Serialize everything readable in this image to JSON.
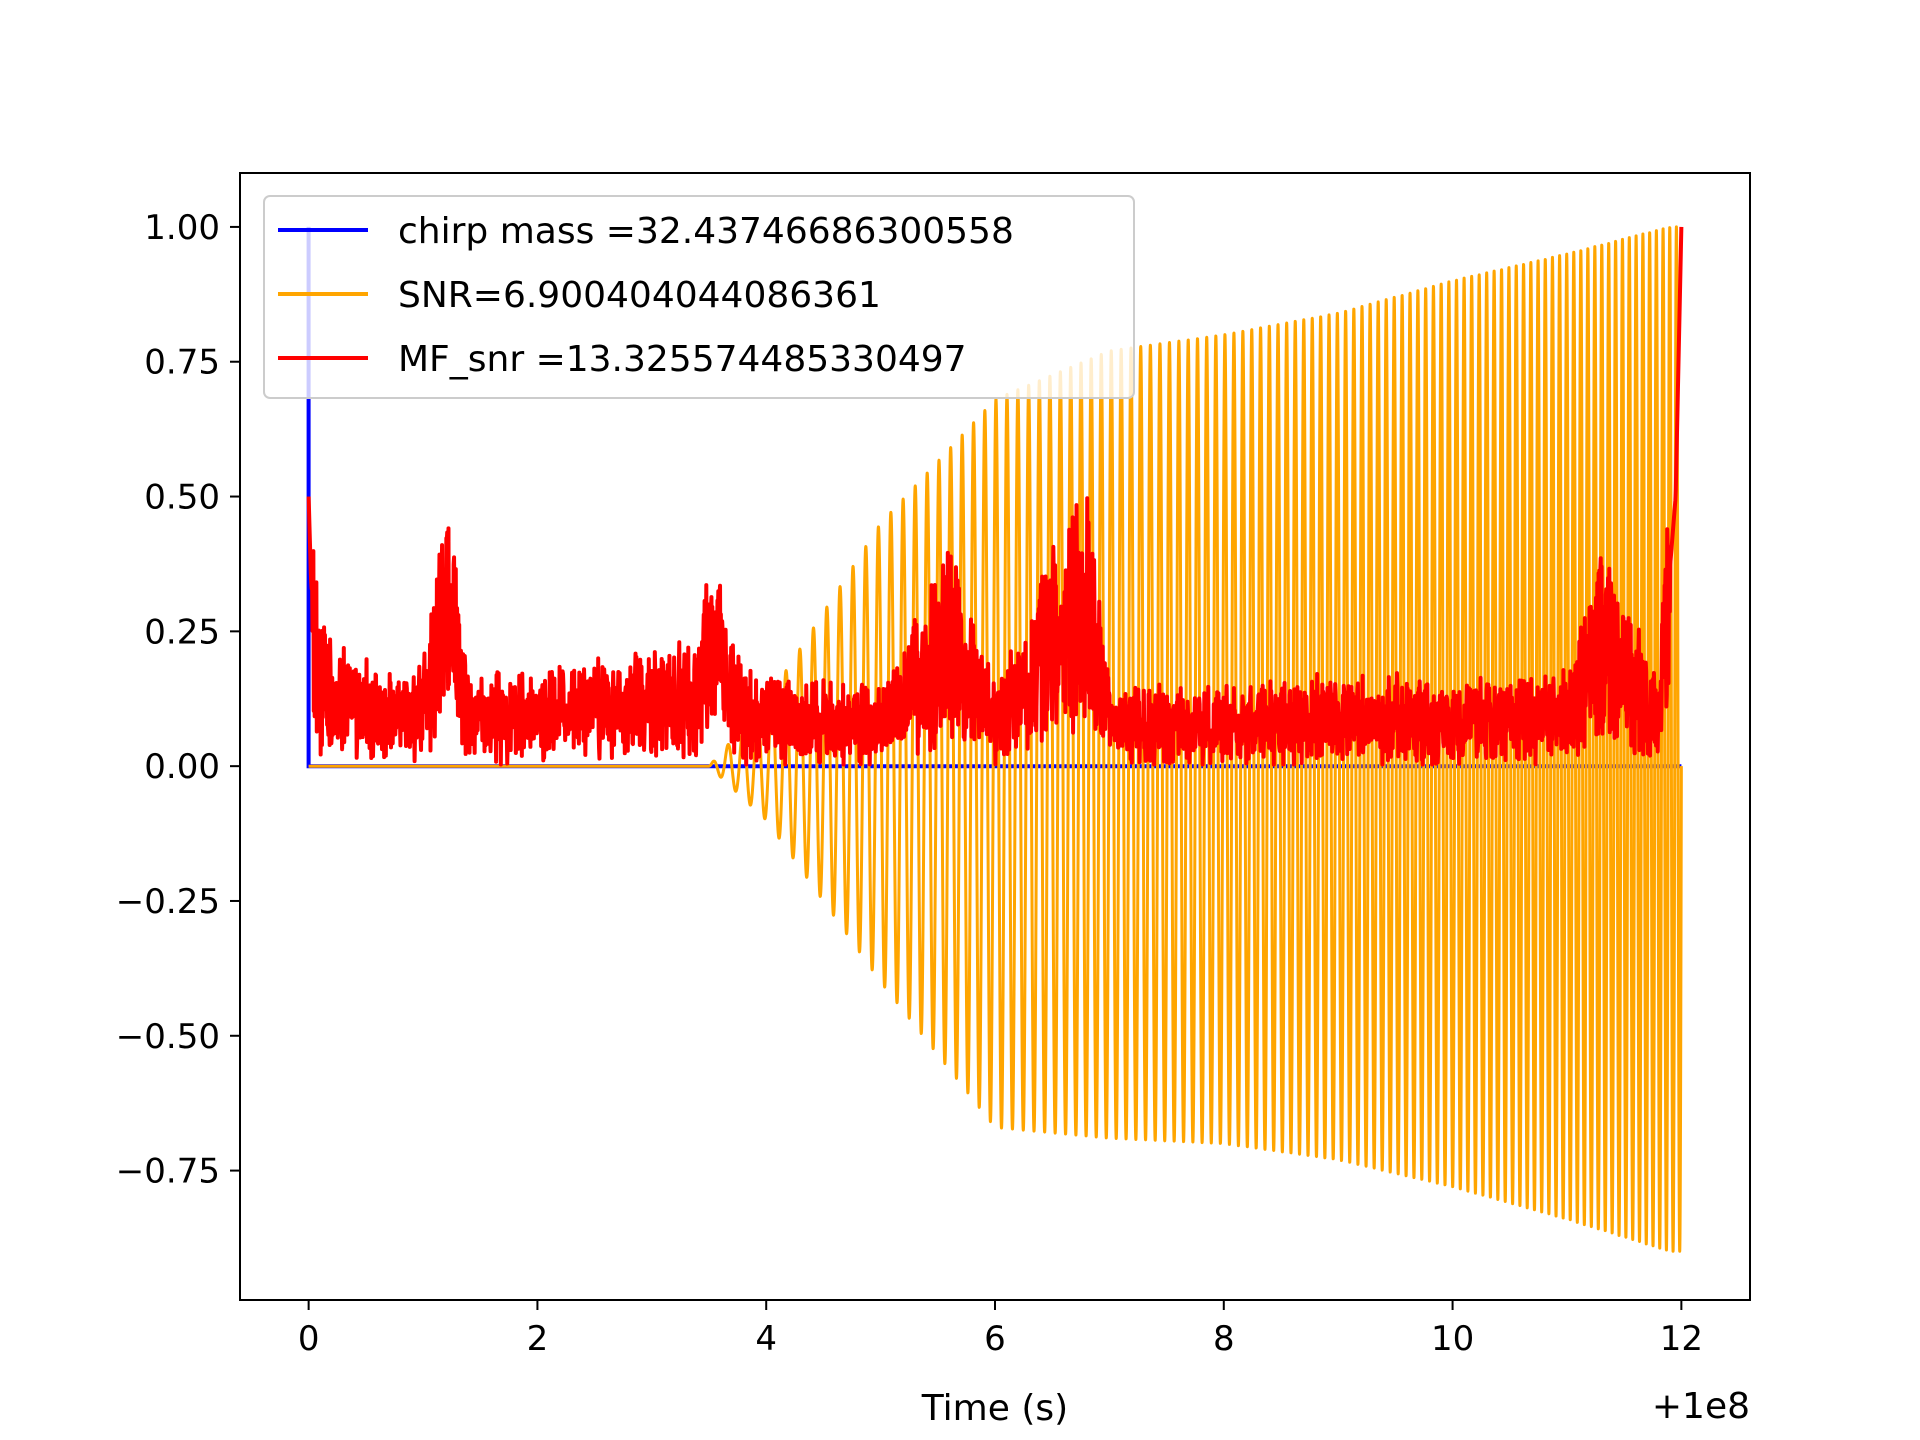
{
  "chart_data": {
    "type": "line",
    "title": "",
    "xlabel": "Time (s)",
    "x_offset_label": "+1e8",
    "ylabel": "",
    "xlim": [
      -0.6,
      12.6
    ],
    "ylim": [
      -0.99,
      1.1
    ],
    "x_ticks": [
      0,
      2,
      4,
      6,
      8,
      10,
      12
    ],
    "x_tick_labels": [
      "0",
      "2",
      "4",
      "6",
      "8",
      "10",
      "12"
    ],
    "y_ticks": [
      1.0,
      0.75,
      0.5,
      0.25,
      0.0,
      -0.25,
      -0.5,
      -0.75
    ],
    "y_tick_labels": [
      "1.00",
      "0.75",
      "0.50",
      "0.25",
      "0.00",
      "−0.25",
      "−0.50",
      "−0.75"
    ],
    "grid": false,
    "legend_position": "top-left",
    "series": [
      {
        "name": "chirp mass =32.43746686300558",
        "color": "#0000ff",
        "kind": "impulse",
        "x": [
          0,
          0,
          0,
          12
        ],
        "y": [
          0,
          1.0,
          0,
          0
        ]
      },
      {
        "name": "SNR=6.900404044086361",
        "color": "#ffa500",
        "kind": "chirp",
        "x_start": 0,
        "x_onset": 3.5,
        "x_end": 12,
        "envelope_x": [
          3.5,
          4.0,
          5.0,
          6.0,
          7.0,
          8.0,
          9.0,
          10.0,
          11.0,
          11.9,
          12.0
        ],
        "envelope_pos": [
          0.0,
          0.12,
          0.45,
          0.68,
          0.77,
          0.8,
          0.84,
          0.9,
          0.95,
          1.0,
          1.0
        ],
        "envelope_neg": [
          0.0,
          -0.1,
          -0.4,
          -0.67,
          -0.69,
          -0.7,
          -0.73,
          -0.78,
          -0.84,
          -0.9,
          -0.9
        ],
        "cycle_count": 105
      },
      {
        "name": "MF_snr =13.325574485330497",
        "color": "#ff0000",
        "kind": "noise",
        "x": [
          0,
          0.02,
          0.05,
          0.1,
          0.2,
          0.4,
          0.7,
          1.0,
          1.22,
          1.4,
          2.0,
          2.7,
          3.0,
          3.4,
          3.5,
          3.8,
          4.0,
          5.0,
          5.6,
          6.0,
          6.8,
          7.0,
          8.0,
          9.0,
          10.0,
          11.0,
          11.3,
          11.8,
          11.95,
          12.0
        ],
        "y": [
          0.5,
          0.35,
          0.25,
          0.18,
          0.15,
          0.12,
          0.1,
          0.12,
          0.34,
          0.1,
          0.1,
          0.12,
          0.12,
          0.14,
          0.27,
          0.1,
          0.1,
          0.08,
          0.25,
          0.08,
          0.35,
          0.08,
          0.08,
          0.1,
          0.09,
          0.1,
          0.25,
          0.1,
          0.5,
          1.0
        ]
      }
    ]
  }
}
